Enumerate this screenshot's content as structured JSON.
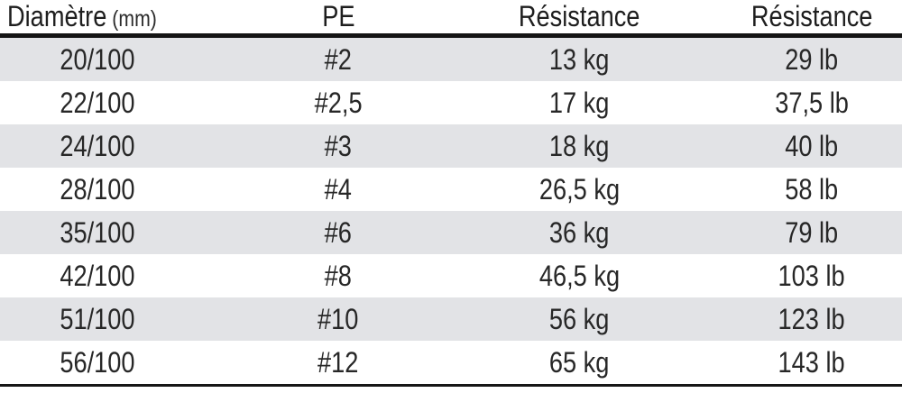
{
  "chart_data": {
    "type": "table",
    "title": "",
    "columns": [
      "Diamètre (mm)",
      "PE",
      "Résistance",
      "Résistance"
    ],
    "rows": [
      [
        "20/100",
        "#2",
        "13 kg",
        "29 lb"
      ],
      [
        "22/100",
        "#2,5",
        "17 kg",
        "37,5 lb"
      ],
      [
        "24/100",
        "#3",
        "18 kg",
        "40 lb"
      ],
      [
        "28/100",
        "#4",
        "26,5 kg",
        "58 lb"
      ],
      [
        "35/100",
        "#6",
        "36 kg",
        "79 lb"
      ],
      [
        "42/100",
        "#8",
        "46,5 kg",
        "103 lb"
      ],
      [
        "51/100",
        "#10",
        "56 kg",
        "123 lb"
      ],
      [
        "56/100",
        "#12",
        "65 kg",
        "143 lb"
      ]
    ],
    "layout": {
      "striped": true,
      "header_rule": true,
      "bottom_rule": true
    }
  },
  "header": {
    "col1_main": "Diamètre",
    "col1_sub": "(mm)",
    "col2": "PE",
    "col3": "Résistance",
    "col4": "Résistance"
  },
  "colors": {
    "stripe_bg": "#e2e3e6",
    "row_bg": "#ffffff",
    "text": "#272727",
    "header_text": "#1e1e1e",
    "rule": "#141414"
  }
}
